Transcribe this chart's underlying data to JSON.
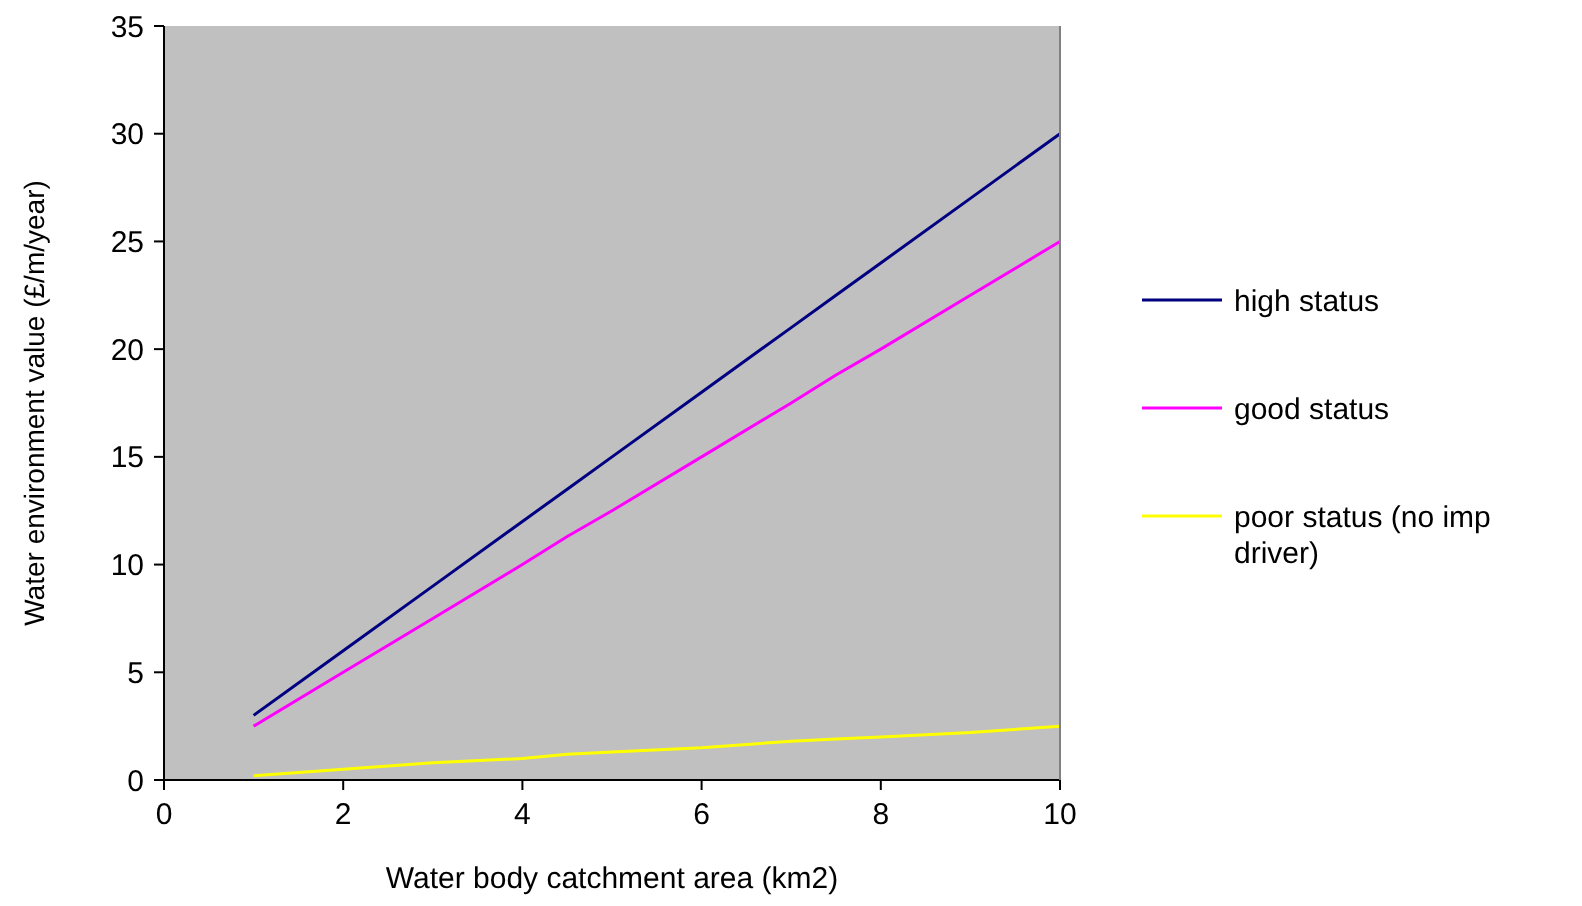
{
  "chart_data": {
    "type": "line",
    "xlabel": "Water body catchment area (km2)",
    "ylabel": "Water environment value (£/m/year)",
    "x": [
      1,
      2,
      3,
      4,
      4.5,
      5,
      6,
      7,
      7.5,
      8,
      9,
      10
    ],
    "series": [
      {
        "name": "high status",
        "color": "#000080",
        "values": [
          3,
          6,
          9,
          12,
          13.5,
          15,
          18,
          21,
          22.5,
          24,
          27,
          30
        ]
      },
      {
        "name": "good status",
        "color": "#ff00ff",
        "values": [
          2.5,
          5,
          7.5,
          10,
          11.3,
          12.5,
          15,
          17.5,
          18.8,
          20,
          22.5,
          25
        ]
      },
      {
        "name": "poor status (no imp driver)",
        "color": "#ffff00",
        "values": [
          0.2,
          0.5,
          0.8,
          1,
          1.2,
          1.3,
          1.5,
          1.8,
          1.9,
          2,
          2.2,
          2.5
        ]
      }
    ],
    "xlim": [
      0,
      10
    ],
    "xticks": [
      0,
      2,
      4,
      6,
      8,
      10
    ],
    "ylim": [
      0,
      35
    ],
    "yticks": [
      0,
      5,
      10,
      15,
      20,
      25,
      30,
      35
    ],
    "grid": false,
    "legend": "right",
    "marker": "none",
    "line_style": "solid"
  }
}
